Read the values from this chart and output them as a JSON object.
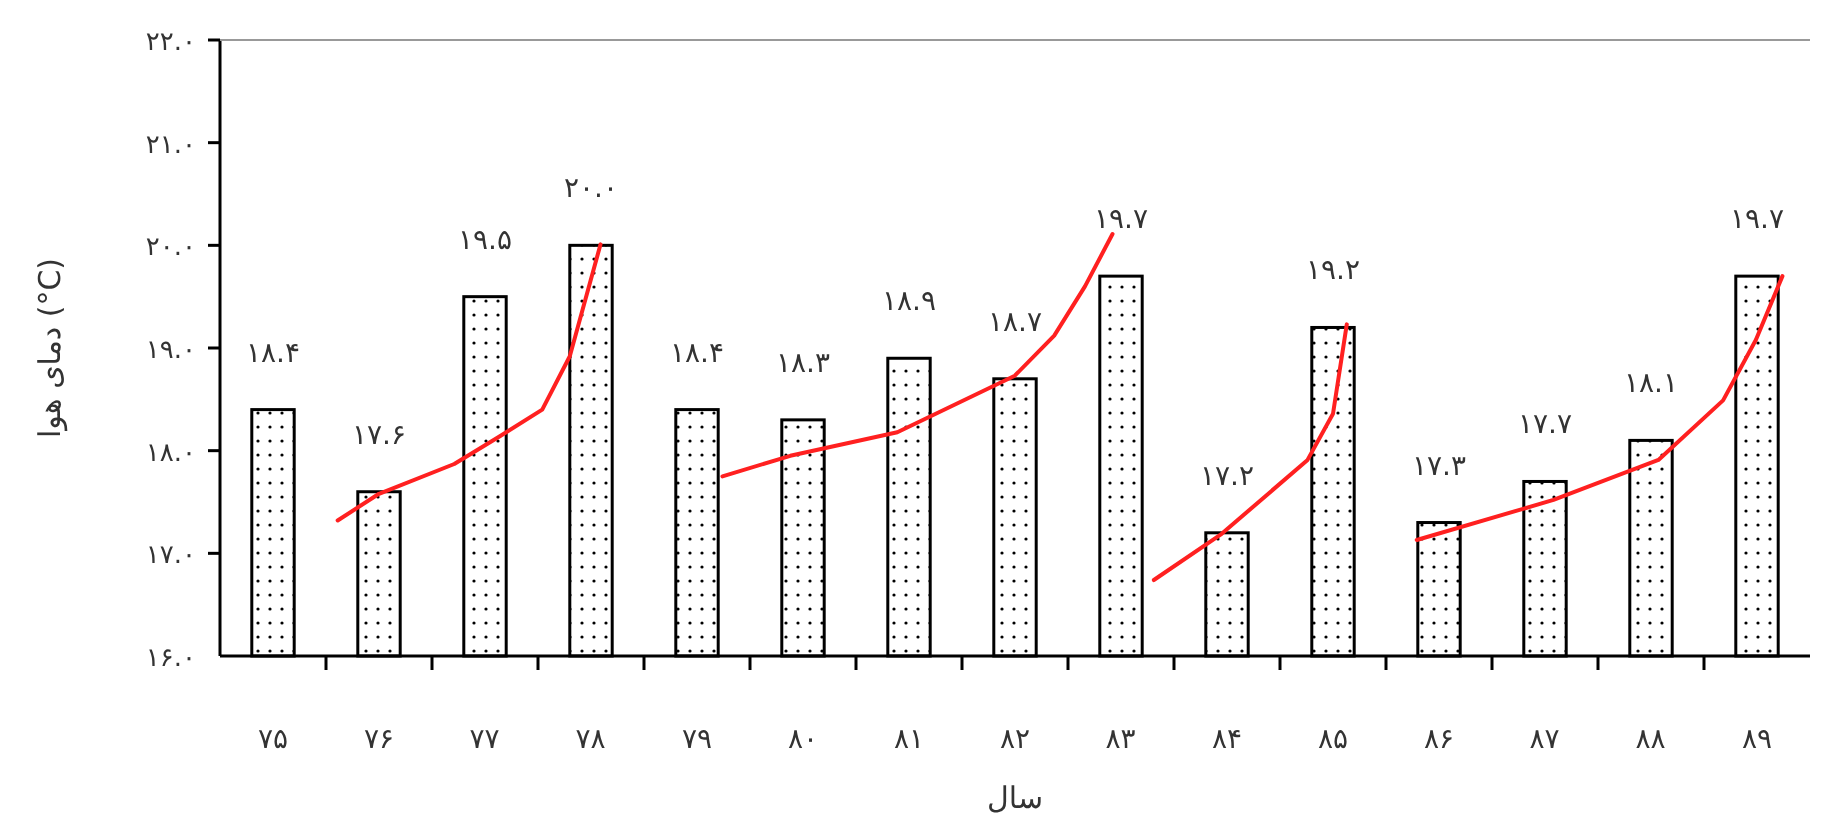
{
  "chart_data": {
    "type": "bar",
    "xlabel": "سال",
    "ylabel": "دمای هوا (°C)",
    "x": [
      75,
      76,
      77,
      78,
      79,
      80,
      81,
      82,
      83,
      84,
      85,
      86,
      87,
      88,
      89
    ],
    "xlim": [
      74.5,
      89.5
    ],
    "xticks": [
      {
        "value": 75,
        "label": "۷۵"
      },
      {
        "value": 76,
        "label": "۷۶"
      },
      {
        "value": 77,
        "label": "۷۷"
      },
      {
        "value": 78,
        "label": "۷۸"
      },
      {
        "value": 79,
        "label": "۷۹"
      },
      {
        "value": 80,
        "label": "۸۰"
      },
      {
        "value": 81,
        "label": "۸۱"
      },
      {
        "value": 82,
        "label": "۸۲"
      },
      {
        "value": 83,
        "label": "۸۳"
      },
      {
        "value": 84,
        "label": "۸۴"
      },
      {
        "value": 85,
        "label": "۸۵"
      },
      {
        "value": 86,
        "label": "۸۶"
      },
      {
        "value": 87,
        "label": "۸۷"
      },
      {
        "value": 88,
        "label": "۸۸"
      },
      {
        "value": 89,
        "label": "۸۹"
      },
      {
        "value": 75.5,
        "label": null
      },
      {
        "value": 76.5,
        "label": null
      },
      {
        "value": 77.5,
        "label": null
      },
      {
        "value": 78.5,
        "label": null
      },
      {
        "value": 79.5,
        "label": null
      },
      {
        "value": 80.5,
        "label": null
      },
      {
        "value": 81.5,
        "label": null
      },
      {
        "value": 82.5,
        "label": null
      },
      {
        "value": 83.5,
        "label": null
      },
      {
        "value": 84.5,
        "label": null
      },
      {
        "value": 85.5,
        "label": null
      },
      {
        "value": 86.5,
        "label": null
      },
      {
        "value": 87.5,
        "label": null
      },
      {
        "value": 88.5,
        "label": null
      }
    ],
    "ylim": [
      16,
      22
    ],
    "yticks": [
      {
        "value": 16,
        "label": "۱۶.۰"
      },
      {
        "value": 17,
        "label": "۱۷.۰"
      },
      {
        "value": 18,
        "label": "۱۸.۰"
      },
      {
        "value": 19,
        "label": "۱۹.۰"
      },
      {
        "value": 20,
        "label": "۲۰.۰"
      },
      {
        "value": 21,
        "label": "۲۱.۰"
      },
      {
        "value": 22,
        "label": "۲۲.۰"
      }
    ],
    "series": [
      {
        "color": "#000000",
        "values": [
          18.4,
          17.6,
          19.5,
          20.0,
          18.4,
          18.3,
          18.9,
          18.7,
          19.7,
          17.2,
          19.2,
          17.3,
          17.7,
          18.1,
          19.7
        ],
        "value_labels": [
          "۱۸.۴",
          "۱۷.۶",
          "۱۹.۵",
          "۲۰.۰",
          "۱۸.۴",
          "۱۸.۳",
          "۱۸.۹",
          "۱۸.۷",
          "۱۹.۷",
          "۱۷.۲",
          "۱۹.۲",
          "۱۷.۳",
          "۱۷.۷",
          "۱۸.۱",
          "۱۹.۷"
        ]
      },
      {
        "type": "line",
        "color": "#ff2020",
        "x": [
          75.61,
          76.0,
          76.71,
          77.14,
          77.54,
          77.8,
          78.09
        ],
        "values": [
          17.32,
          17.58,
          17.87,
          18.14,
          18.4,
          18.92,
          20.01
        ]
      },
      {
        "type": "line",
        "color": "#ff2020",
        "x": [
          79.24,
          79.88,
          80.89,
          81.998,
          82.37,
          82.66,
          82.92
        ],
        "values": [
          17.75,
          17.95,
          18.18,
          18.73,
          19.12,
          19.6,
          20.11
        ]
      },
      {
        "type": "line",
        "color": "#ff2020",
        "x": [
          83.31,
          83.95,
          84.76,
          85.0,
          85.13
        ],
        "values": [
          16.74,
          17.19,
          17.91,
          18.36,
          19.23
        ]
      },
      {
        "type": "line",
        "color": "#ff2020",
        "x": [
          85.79,
          87.08,
          88.07,
          88.68,
          88.99,
          89.24
        ],
        "values": [
          17.13,
          17.52,
          17.91,
          18.49,
          19.08,
          19.7
        ]
      }
    ],
    "grid": false
  }
}
